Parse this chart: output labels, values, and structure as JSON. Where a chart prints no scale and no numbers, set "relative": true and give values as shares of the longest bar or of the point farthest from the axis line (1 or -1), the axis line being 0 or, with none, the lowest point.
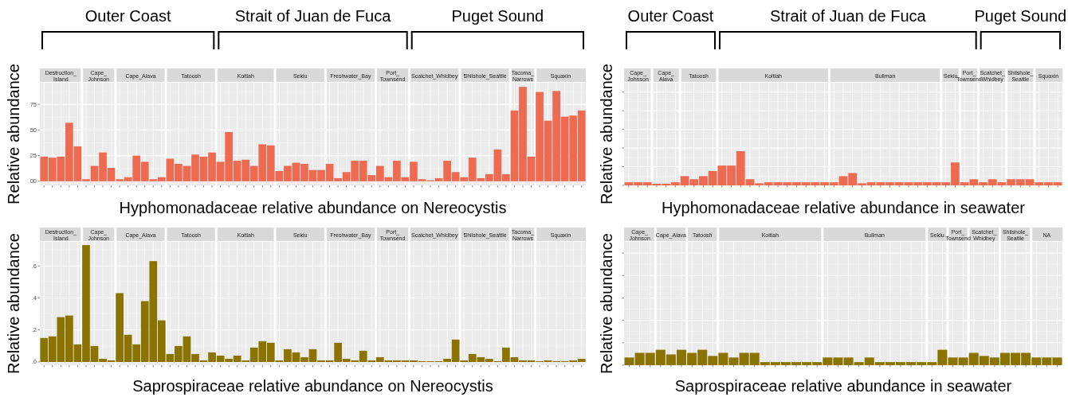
{
  "chart_data": [
    {
      "type": "bar",
      "title": "Hyphomonadaceae relative abundance on Nereocystis",
      "ylabel": "Relative abundance",
      "color": "#ee6a50",
      "grid": true,
      "tick_labels": "y",
      "ylim": [
        -4,
        96
      ],
      "yticks": [
        {
          "value": 0,
          "label": "00"
        },
        25,
        50,
        75
      ],
      "categories": [
        null,
        null,
        null,
        null,
        null,
        null,
        null,
        null,
        null,
        null,
        null,
        null,
        null,
        null,
        null,
        null,
        null,
        null,
        null,
        null,
        null,
        null,
        null,
        null,
        null,
        null,
        null,
        null,
        null,
        null,
        null,
        null,
        null,
        null,
        null,
        null,
        null,
        null,
        null,
        null,
        null,
        null,
        null,
        null,
        null,
        null,
        null,
        null,
        null,
        null,
        null,
        null,
        null,
        null,
        null,
        null,
        null,
        null,
        null,
        null,
        null,
        null,
        null,
        null,
        null
      ],
      "values": [
        24,
        23,
        24,
        57,
        34,
        2,
        15,
        28,
        13,
        2,
        4,
        25,
        19,
        2,
        4,
        22,
        17,
        15,
        26,
        24,
        28,
        19,
        48,
        20,
        21,
        15,
        36,
        35,
        10,
        15,
        18,
        17,
        11,
        11,
        17,
        3,
        9,
        20,
        20,
        6,
        15,
        4,
        20,
        4,
        19,
        2,
        1,
        3,
        20,
        9,
        4,
        23,
        3,
        7,
        31,
        7,
        69,
        92,
        24,
        87,
        59,
        88,
        63,
        64,
        69
      ],
      "annotations": [
        "Outer Coast",
        "Strait of Juan de Fuca",
        "Puget Sound",
        "Destruction_Island",
        "Cape_Johnson",
        "Cape_Alava",
        "Tatoosh",
        "Koitlah",
        "Sekiu",
        "Freshwater_Bay",
        "Port_Townsend",
        "Scatchet_Whidbey",
        "Shilshole_Seattle",
        "Tacoma_Narrows",
        "Squaxin"
      ]
    },
    {
      "type": "bar",
      "title": "Hyphomonadaceae relative abundance in seawater",
      "ylabel": "Relative abundance",
      "color": "#ee6a50",
      "grid": true,
      "tick_labels": false,
      "relative": true,
      "categories": [
        null,
        null,
        null,
        null,
        null,
        null,
        null,
        null,
        null,
        null,
        null,
        null,
        null,
        null,
        null,
        null,
        null,
        null,
        null,
        null,
        null,
        null,
        null,
        null,
        null,
        null,
        null,
        null,
        null,
        null,
        null,
        null,
        null,
        null,
        null,
        null,
        null,
        null,
        null,
        null,
        null,
        null,
        null,
        null,
        null,
        null,
        null
      ],
      "values": [
        0.09,
        0.09,
        0.09,
        0.05,
        0.05,
        0.09,
        0.27,
        0.18,
        0.27,
        0.42,
        0.58,
        0.58,
        1,
        0.18,
        0.06,
        0.09,
        0.09,
        0.09,
        0.09,
        0.09,
        0.09,
        0.09,
        0.09,
        0.27,
        0.36,
        0.06,
        0.09,
        0.09,
        0.09,
        0.09,
        0.09,
        0.09,
        0.09,
        0.09,
        0.09,
        0.67,
        0.09,
        0.18,
        0.09,
        0.18,
        0.09,
        0.18,
        0.18,
        0.18,
        0.09,
        0.09,
        0.09
      ],
      "annotations": [
        "Outer Coast",
        "Strait of Juan de Fuca",
        "Puget Sound",
        "Cape_Johnson",
        "Cape_Alava",
        "Tatoosh",
        "Koitlah",
        "Bullman",
        "Sekiu",
        "Port_Townsend",
        "Scatchet_Whidbey",
        "Shilshole_Seattle",
        "Squaxin"
      ]
    },
    {
      "type": "bar",
      "title": "Saprospiraceae relative abundance on Nereocystis",
      "ylabel": "Relative abundance",
      "color": "#8b7300",
      "grid": true,
      "tick_labels": "y",
      "ylim": [
        -0.02,
        0.75
      ],
      "yticks": [
        {
          "value": 0,
          "label": ".0"
        },
        {
          "value": 0.2,
          "label": ".2"
        },
        {
          "value": 0.4,
          "label": ".4"
        },
        {
          "value": 0.6,
          "label": ".6"
        }
      ],
      "categories": [
        null,
        null,
        null,
        null,
        null,
        null,
        null,
        null,
        null,
        null,
        null,
        null,
        null,
        null,
        null,
        null,
        null,
        null,
        null,
        null,
        null,
        null,
        null,
        null,
        null,
        null,
        null,
        null,
        null,
        null,
        null,
        null,
        null,
        null,
        null,
        null,
        null,
        null,
        null,
        null,
        null,
        null,
        null,
        null,
        null,
        null,
        null,
        null,
        null,
        null,
        null,
        null,
        null,
        null,
        null,
        null,
        null,
        null,
        null,
        null,
        null,
        null,
        null,
        null,
        null
      ],
      "values": [
        0.15,
        0.16,
        0.28,
        0.29,
        0.11,
        0.73,
        0.1,
        0.02,
        0.01,
        0.43,
        0.17,
        0.11,
        0.38,
        0.63,
        0.26,
        0.05,
        0.1,
        0.16,
        0.05,
        0.01,
        0.06,
        0.04,
        0.02,
        0.04,
        0.01,
        0.09,
        0.13,
        0.12,
        0.01,
        0.08,
        0.06,
        0.03,
        0.08,
        0.01,
        0.01,
        0.12,
        0.02,
        0.01,
        0.07,
        0.01,
        0.03,
        0.01,
        0.01,
        0.01,
        0.01,
        0.005,
        0.005,
        0.005,
        0.02,
        0.14,
        0.01,
        0.05,
        0.03,
        0.02,
        0.005,
        0.09,
        0.03,
        0.01,
        0.01,
        0.005,
        0.01,
        0.005,
        0.005,
        0.01,
        0.02
      ],
      "annotations": [
        "Destruction_Island",
        "Cape_Johnson",
        "Cape_Alava",
        "Tatoosh",
        "Koitlah",
        "Sekiu",
        "Freshwater_Bay",
        "Port_Townsend",
        "Scatchet_Whidbey",
        "Shilshole_Seattle",
        "Tacoma_Narrows",
        "Squaxin"
      ]
    },
    {
      "type": "bar",
      "title": "Saprospiraceae relative abundance in seawater",
      "ylabel": "Relative abundance",
      "color": "#8b7300",
      "grid": true,
      "tick_labels": false,
      "relative": true,
      "categories": [
        null,
        null,
        null,
        null,
        null,
        null,
        null,
        null,
        null,
        null,
        null,
        null,
        null,
        null,
        null,
        null,
        null,
        null,
        null,
        null,
        null,
        null,
        null,
        null,
        null,
        null,
        null,
        null,
        null,
        null,
        null,
        null,
        null,
        null,
        null,
        null,
        null,
        null,
        null,
        null,
        null,
        null
      ],
      "values": [
        0.5,
        0.8,
        0.8,
        1,
        0.7,
        1,
        0.8,
        1,
        0.6,
        0.8,
        0.5,
        0.8,
        0.8,
        0.2,
        0.2,
        0.2,
        0.2,
        0.2,
        0.2,
        0.5,
        0.5,
        0.5,
        0.2,
        0.5,
        0.2,
        0.2,
        0.2,
        0.2,
        0.2,
        0.2,
        1,
        0.5,
        0.5,
        0.8,
        0.6,
        0.5,
        0.8,
        0.8,
        0.8,
        0.5,
        0.5,
        0.5
      ],
      "annotations": [
        "Cape_Johnson",
        "Cape_Alava",
        "Tatoosh",
        "Koitlah",
        "Bullman",
        "Sekiu",
        "Port_Townsend",
        "Scatchet_Whidbey",
        "Shilshole_Seattle",
        "NA"
      ]
    }
  ]
}
